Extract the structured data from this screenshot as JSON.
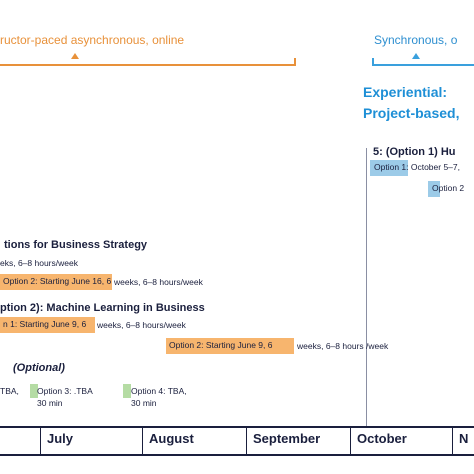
{
  "brackets": {
    "instructor": "ructor-paced asynchronous, online",
    "synchronous": "Synchronous, o"
  },
  "experiential": {
    "line1": "Experiential:",
    "line2": "Project-based,"
  },
  "project_course": {
    "title": "5: (Option 1) Hu",
    "option1": "Option 1: October 5–7,",
    "option2": "Option 2"
  },
  "course_a": {
    "title": "tions for Business Strategy",
    "details": "eks, 6–8 hours/week",
    "option2_label": "Option 2: Starting June 16, 6",
    "option2_rest": "weeks, 6–8 hours/week"
  },
  "course_b": {
    "title": "ption 2): Machine Learning in Business",
    "option1_label": "n 1: Starting June 9, 6",
    "option1_rest": "weeks, 6–8 hours/week",
    "option2_label": "Option 2: Starting June 9, 6",
    "option2_rest": "weeks, 6–8 hours /week"
  },
  "sessions": {
    "optional": "(Optional)",
    "tba_left": "TBA,",
    "opt3_line1": "Option 3: .TBA",
    "opt3_line2": "30 min",
    "opt4_line1": "Option 4: TBA,",
    "opt4_line2": "30 min"
  },
  "months": [
    "July",
    "August",
    "September",
    "October",
    "N"
  ],
  "colors": {
    "orange": "#e8913a",
    "orange_fill": "#f7b56e",
    "blue": "#2e8fd0",
    "blue_fill": "#9ccbe8",
    "green_fill": "#b5dca4",
    "navy": "#1a1f3d"
  }
}
